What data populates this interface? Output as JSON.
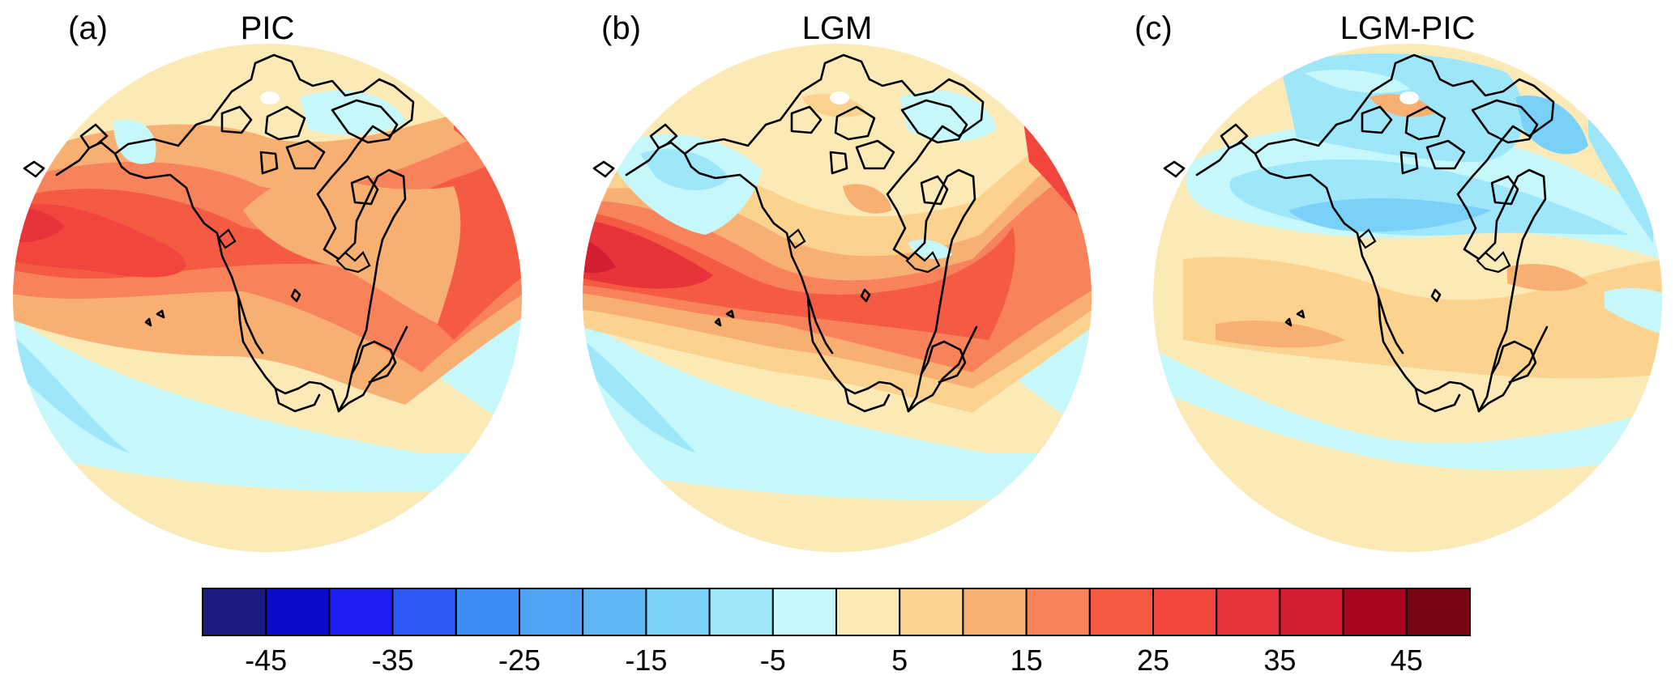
{
  "figure": {
    "panels": [
      {
        "letter": "(a)",
        "title": "PIC"
      },
      {
        "letter": "(b)",
        "title": "LGM"
      },
      {
        "letter": "(c)",
        "title": "LGM-PIC"
      }
    ]
  },
  "colorbar": {
    "colors": [
      "#1a1a80",
      "#0a0ac8",
      "#1e1ef5",
      "#2e5bf5",
      "#3d8cf5",
      "#4ea3f5",
      "#5fb6f5",
      "#79d0f8",
      "#9ee7fa",
      "#c6f8fb",
      "#fbeab6",
      "#fbd28e",
      "#f8b072",
      "#f8825a",
      "#f55a42",
      "#f2453d",
      "#e8333a",
      "#d41f33",
      "#a5051f",
      "#7a0512"
    ],
    "tick_values": [
      "-45",
      "-35",
      "-25",
      "-15",
      "-5",
      "5",
      "15",
      "25",
      "35",
      "45"
    ]
  }
}
